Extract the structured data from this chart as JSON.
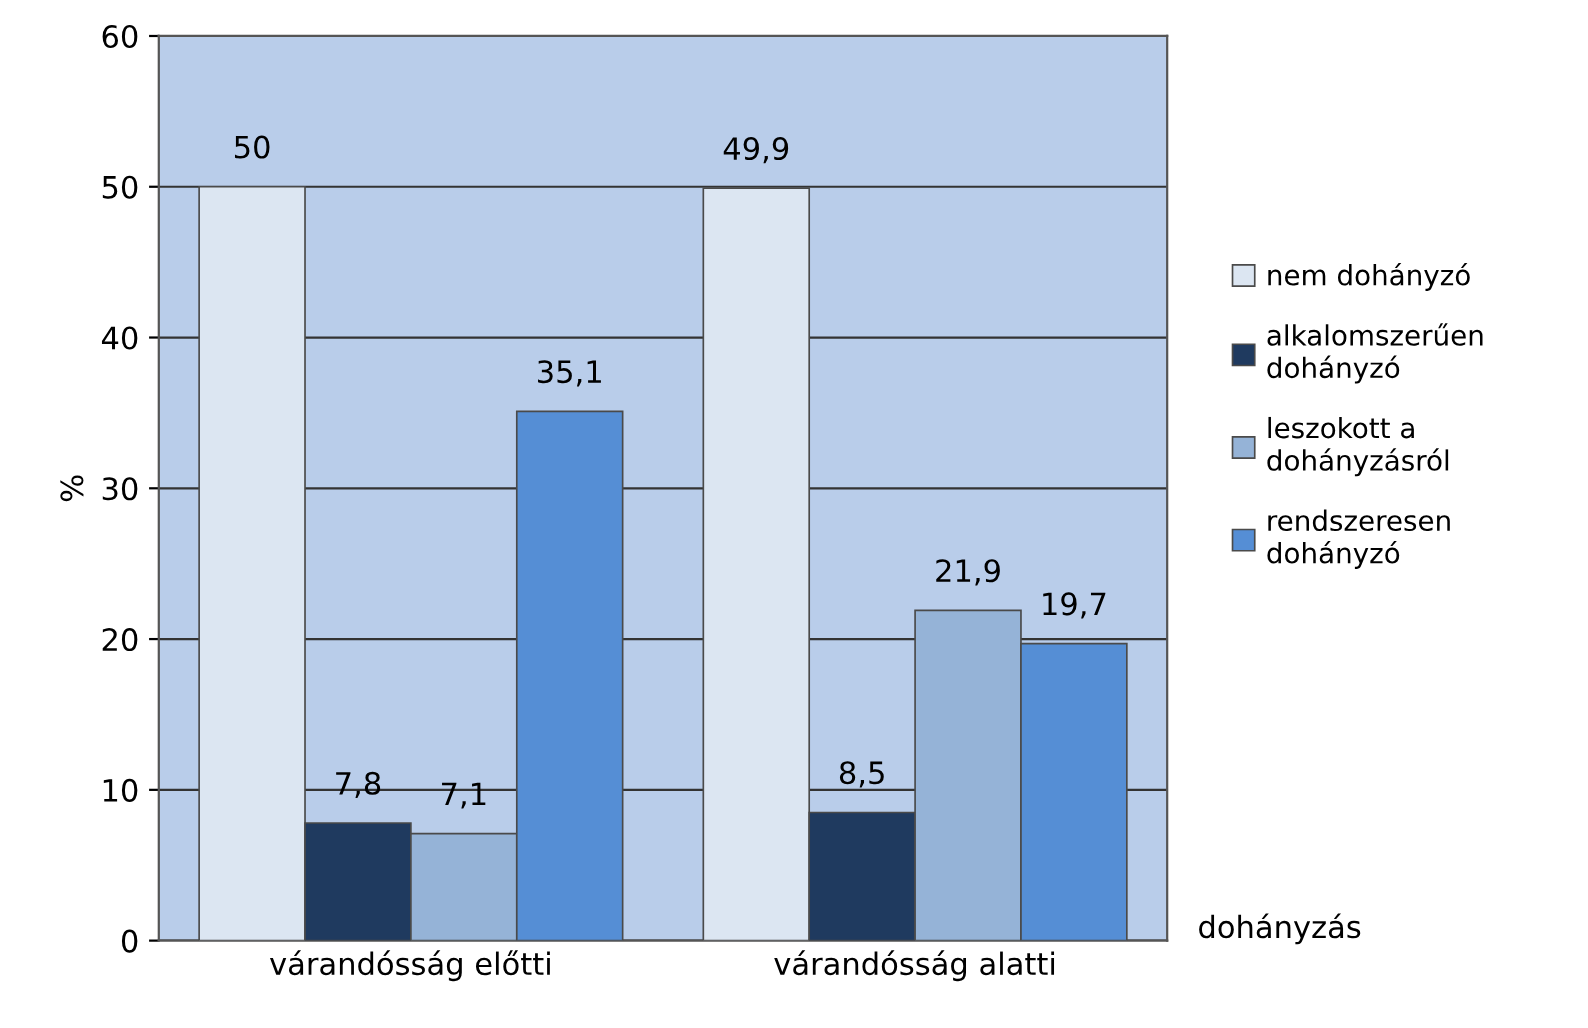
{
  "chart_data": {
    "type": "bar",
    "ylabel": "%",
    "xlabel": "dohányzás",
    "categories": [
      "várandósság előtti",
      "várandósság alatti"
    ],
    "series": [
      {
        "name": "nem dohányzó",
        "color": "#dce6f2",
        "values": [
          50,
          49.9
        ],
        "value_labels": [
          "50",
          "49,9"
        ]
      },
      {
        "name": "alkalomszerűen\ndohányzó",
        "color": "#1f3a5f",
        "values": [
          7.8,
          8.5
        ],
        "value_labels": [
          "7,8",
          "8,5"
        ]
      },
      {
        "name": "leszokott a\ndohányzásról",
        "color": "#95b3d7",
        "values": [
          7.1,
          21.9
        ],
        "value_labels": [
          "7,1",
          "21,9"
        ]
      },
      {
        "name": "rendszeresen\ndohányzó",
        "color": "#558ed5",
        "values": [
          35.1,
          19.7
        ],
        "value_labels": [
          "35,1",
          "19,7"
        ]
      }
    ],
    "ylim": [
      0,
      60
    ],
    "yticks": [
      0,
      10,
      20,
      30,
      40,
      50,
      60
    ],
    "grid": "y",
    "legend": "right"
  }
}
